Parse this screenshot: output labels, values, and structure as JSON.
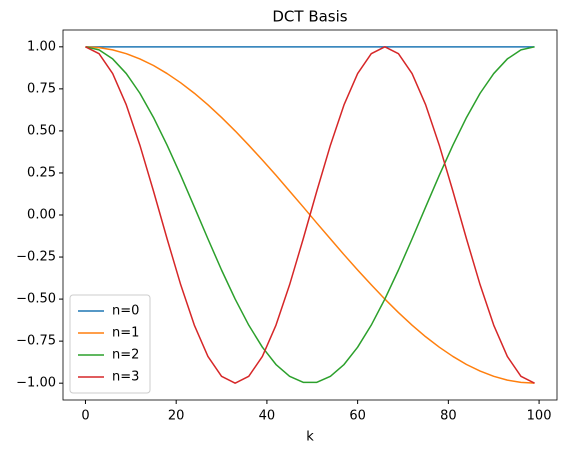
{
  "chart_data": {
    "type": "line",
    "title": "DCT Basis",
    "x_label": "k",
    "x": [
      0,
      3,
      6,
      9,
      12,
      15,
      18,
      21,
      24,
      27,
      30,
      33,
      36,
      39,
      42,
      45,
      48,
      51,
      54,
      57,
      60,
      63,
      66,
      69,
      72,
      75,
      78,
      81,
      84,
      87,
      90,
      93,
      96,
      99
    ],
    "series": [
      {
        "name": "n=0",
        "color": "#1f77b4",
        "values": [
          1,
          1,
          1,
          1,
          1,
          1,
          1,
          1,
          1,
          1,
          1,
          1,
          1,
          1,
          1,
          1,
          1,
          1,
          1,
          1,
          1,
          1,
          1,
          1,
          1,
          1,
          1,
          1,
          1,
          1,
          1,
          1,
          1,
          1
        ]
      },
      {
        "name": "n=1",
        "color": "#ff7f0e",
        "values": [
          1,
          0.995,
          0.982,
          0.959,
          0.928,
          0.889,
          0.841,
          0.786,
          0.724,
          0.655,
          0.58,
          0.5,
          0.415,
          0.327,
          0.236,
          0.142,
          0.048,
          -0.048,
          -0.142,
          -0.236,
          -0.327,
          -0.415,
          -0.5,
          -0.58,
          -0.655,
          -0.724,
          -0.786,
          -0.841,
          -0.889,
          -0.928,
          -0.959,
          -0.982,
          -0.995,
          -1
        ]
      },
      {
        "name": "n=2",
        "color": "#2ca02c",
        "values": [
          1,
          0.982,
          0.928,
          0.841,
          0.724,
          0.58,
          0.415,
          0.236,
          0.048,
          -0.142,
          -0.327,
          -0.5,
          -0.655,
          -0.786,
          -0.889,
          -0.959,
          -0.995,
          -0.995,
          -0.959,
          -0.889,
          -0.786,
          -0.655,
          -0.5,
          -0.327,
          -0.142,
          0.048,
          0.236,
          0.415,
          0.58,
          0.724,
          0.841,
          0.928,
          0.982,
          1
        ]
      },
      {
        "name": "n=3",
        "color": "#d62728",
        "values": [
          1,
          0.959,
          0.841,
          0.655,
          0.415,
          0.142,
          -0.142,
          -0.415,
          -0.655,
          -0.841,
          -0.959,
          -1,
          -0.959,
          -0.841,
          -0.655,
          -0.415,
          -0.142,
          0.142,
          0.415,
          0.655,
          0.841,
          0.959,
          1,
          0.959,
          0.841,
          0.655,
          0.415,
          0.142,
          -0.142,
          -0.415,
          -0.655,
          -0.841,
          -0.959,
          -1
        ]
      }
    ],
    "xlim": [
      -4.95,
      103.95
    ],
    "xticks": [
      0,
      20,
      40,
      60,
      80,
      100
    ],
    "ylim": [
      -1.1,
      1.1
    ],
    "yticks": [
      {
        "value": -1,
        "label": "−1.00"
      },
      {
        "value": -0.75,
        "label": "−0.75"
      },
      {
        "value": -0.5,
        "label": "−0.50"
      },
      {
        "value": -0.25,
        "label": "−0.25"
      },
      {
        "value": 0,
        "label": "0.00"
      },
      {
        "value": 0.25,
        "label": "0.25"
      },
      {
        "value": 0.5,
        "label": "0.50"
      },
      {
        "value": 0.75,
        "label": "0.75"
      },
      {
        "value": 1,
        "label": "1.00"
      }
    ],
    "legend": "lower left"
  }
}
